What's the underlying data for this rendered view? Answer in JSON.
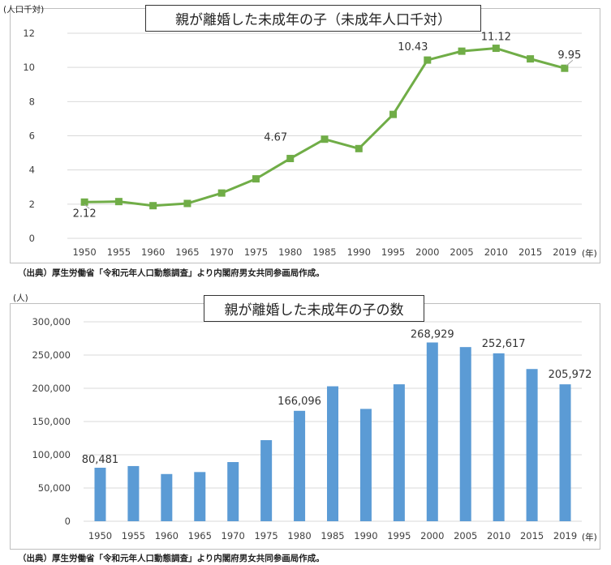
{
  "colors": {
    "line": "#70ad47",
    "bar": "#5b9bd5",
    "grid": "#d9d9d9",
    "axis_text": "#404040"
  },
  "chart_data": [
    {
      "type": "line",
      "title": "親が離婚した未成年の子（未成年人口千対）",
      "ylabel": "(人口千対)",
      "xlabel": "(年)",
      "ylim": [
        0,
        12
      ],
      "yticks": [
        "0",
        "2",
        "4",
        "6",
        "8",
        "10",
        "12"
      ],
      "categories": [
        "1950",
        "1955",
        "1960",
        "1965",
        "1970",
        "1975",
        "1980",
        "1985",
        "1990",
        "1995",
        "2000",
        "2005",
        "2010",
        "2015",
        "2019"
      ],
      "series": [
        {
          "values": [
            2.12,
            2.15,
            1.91,
            2.04,
            2.65,
            3.48,
            4.67,
            5.8,
            5.25,
            7.25,
            10.43,
            10.95,
            11.12,
            10.5,
            9.95
          ]
        }
      ],
      "data_labels": [
        {
          "index": 0,
          "text": "2.12"
        },
        {
          "index": 6,
          "text": "4.67"
        },
        {
          "index": 10,
          "text": "10.43"
        },
        {
          "index": 12,
          "text": "11.12"
        },
        {
          "index": 14,
          "text": "9.95"
        }
      ],
      "grid": true,
      "marker": "square",
      "source": "（出典）厚生労働省「令和元年人口動態調査」より内閣府男女共同参画局作成。"
    },
    {
      "type": "bar",
      "title": "親が離婚した未成年の子の数",
      "ylabel": "(人)",
      "xlabel": "(年)",
      "ylim": [
        0,
        300000
      ],
      "yticks": [
        "0",
        "50,000",
        "100,000",
        "150,000",
        "200,000",
        "250,000",
        "300,000"
      ],
      "categories": [
        "1950",
        "1955",
        "1960",
        "1965",
        "1970",
        "1975",
        "1980",
        "1985",
        "1990",
        "1995",
        "2000",
        "2005",
        "2010",
        "2015",
        "2019"
      ],
      "series": [
        {
          "values": [
            80481,
            83000,
            71000,
            74000,
            89000,
            122000,
            166096,
            203000,
            169000,
            206000,
            268929,
            262000,
            252617,
            229000,
            205972
          ]
        }
      ],
      "data_labels": [
        {
          "index": 0,
          "text": "80,481"
        },
        {
          "index": 6,
          "text": "166,096"
        },
        {
          "index": 10,
          "text": "268,929"
        },
        {
          "index": 12,
          "text": "252,617"
        },
        {
          "index": 14,
          "text": "205,972"
        }
      ],
      "grid": true,
      "source": "（出典）厚生労働省「令和元年人口動態調査」より内閣府男女共同参画局作成。"
    }
  ]
}
